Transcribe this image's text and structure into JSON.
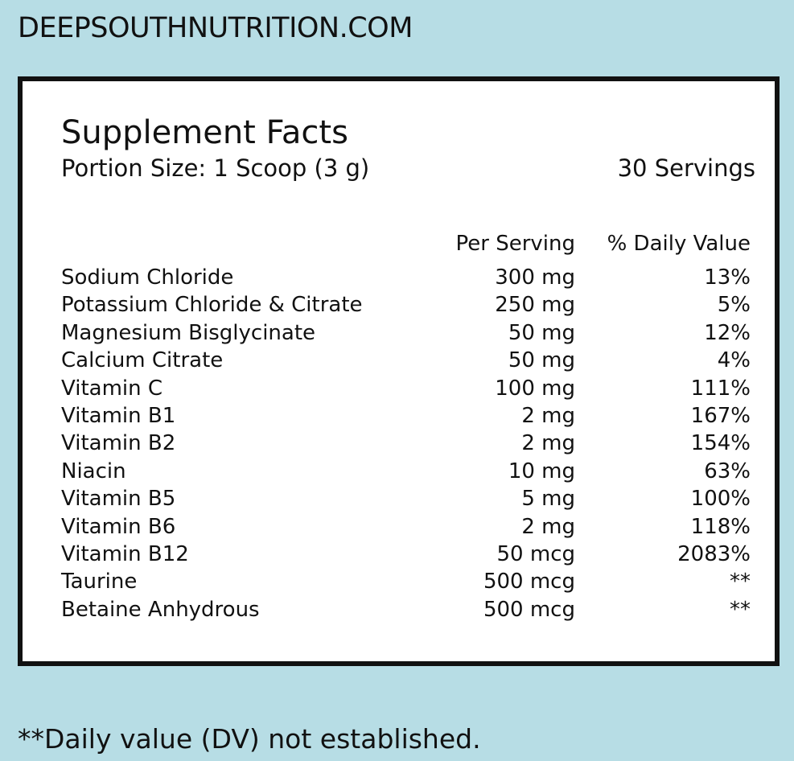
{
  "header": {
    "site": "DEEPSOUTHNUTRITION.COM"
  },
  "label": {
    "title": "Supplement Facts",
    "portion_size": "Portion Size: 1 Scoop (3 g)",
    "servings": "30 Servings"
  },
  "table": {
    "columns": [
      "Per Serving",
      "% Daily Value"
    ],
    "rows": [
      [
        "Sodium Chloride",
        "300 mg",
        "13%"
      ],
      [
        "Potassium Chloride & Citrate",
        "250 mg",
        "5%"
      ],
      [
        "Magnesium Bisglycinate",
        "50 mg",
        "12%"
      ],
      [
        "Calcium Citrate",
        "50 mg",
        "4%"
      ],
      [
        "Vitamin C",
        "100 mg",
        "111%"
      ],
      [
        "Vitamin B1",
        "2 mg",
        "167%"
      ],
      [
        "Vitamin B2",
        "2 mg",
        "154%"
      ],
      [
        "Niacin",
        "10 mg",
        "63%"
      ],
      [
        "Vitamin B5",
        "5 mg",
        "100%"
      ],
      [
        "Vitamin B6",
        "2 mg",
        "118%"
      ],
      [
        "Vitamin B12",
        "50 mcg",
        "2083%"
      ],
      [
        "Taurine",
        "500 mcg",
        "**"
      ],
      [
        "Betaine Anhydrous",
        "500 mcg",
        "**"
      ]
    ]
  },
  "footnote": "**Daily value (DV) not established."
}
